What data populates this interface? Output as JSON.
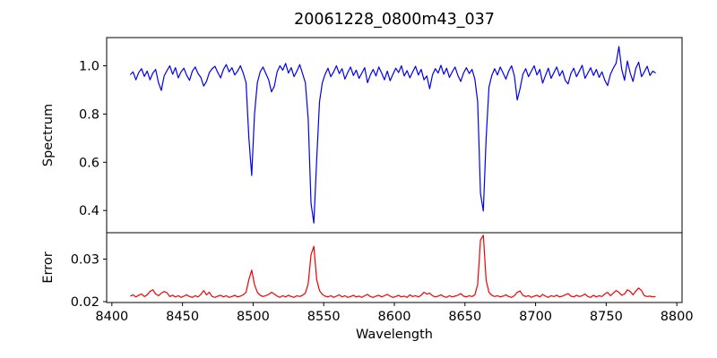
{
  "chart_data": {
    "type": "line",
    "title": "20061228_0800m43_037",
    "xlabel": "Wavelength",
    "grid": false,
    "legend": null,
    "xlim": [
      8396.3,
      8803.7
    ],
    "xticks": [
      "8400",
      "8450",
      "8500",
      "8550",
      "8600",
      "8650",
      "8700",
      "8750",
      "8800"
    ],
    "x_start": 8413,
    "x_step": 2,
    "panels": [
      {
        "name": "spectrum",
        "ylabel": "Spectrum",
        "color": "#0000f0",
        "ylim": [
          0.308,
          1.117
        ],
        "yticks": [
          "0.4",
          "0.6",
          "0.8",
          "1.0"
        ],
        "values": [
          0.963,
          0.975,
          0.942,
          0.972,
          0.988,
          0.956,
          0.978,
          0.942,
          0.97,
          0.985,
          0.93,
          0.898,
          0.958,
          0.98,
          1.0,
          0.965,
          0.992,
          0.95,
          0.975,
          0.99,
          0.96,
          0.94,
          0.978,
          0.995,
          0.968,
          0.952,
          0.916,
          0.935,
          0.972,
          0.988,
          0.998,
          0.972,
          0.95,
          0.985,
          1.005,
          0.975,
          0.992,
          0.962,
          0.978,
          1.0,
          0.97,
          0.93,
          0.7,
          0.545,
          0.8,
          0.93,
          0.975,
          0.995,
          0.968,
          0.942,
          0.892,
          0.915,
          0.975,
          1.0,
          0.982,
          1.01,
          0.97,
          0.992,
          0.955,
          0.978,
          1.005,
          0.968,
          0.93,
          0.78,
          0.43,
          0.348,
          0.61,
          0.85,
          0.93,
          0.965,
          0.99,
          0.955,
          0.975,
          1.0,
          0.968,
          0.988,
          0.945,
          0.972,
          0.995,
          0.96,
          0.982,
          0.948,
          0.97,
          0.992,
          0.93,
          0.962,
          0.985,
          0.958,
          0.995,
          0.97,
          0.942,
          0.978,
          0.938,
          0.965,
          0.99,
          0.972,
          1.0,
          0.958,
          0.98,
          0.95,
          0.975,
          0.998,
          0.962,
          0.985,
          0.942,
          0.958,
          0.905,
          0.962,
          0.988,
          0.97,
          1.002,
          0.965,
          0.99,
          0.952,
          0.975,
          0.995,
          0.96,
          0.935,
          0.97,
          0.992,
          0.968,
          0.985,
          0.945,
          0.85,
          0.47,
          0.398,
          0.7,
          0.912,
          0.96,
          0.988,
          0.962,
          0.995,
          0.97,
          0.945,
          0.978,
          1.0,
          0.958,
          0.858,
          0.905,
          0.965,
          0.988,
          0.955,
          0.978,
          1.0,
          0.962,
          0.985,
          0.928,
          0.96,
          0.99,
          0.948,
          0.972,
          0.995,
          0.958,
          0.98,
          0.94,
          0.925,
          0.968,
          0.99,
          0.955,
          0.978,
          1.002,
          0.948,
          0.97,
          0.992,
          0.96,
          0.985,
          0.952,
          0.975,
          0.94,
          0.918,
          0.965,
          0.99,
          1.01,
          1.08,
          0.985,
          0.94,
          1.02,
          0.97,
          0.935,
          0.99,
          1.015,
          0.955,
          0.975,
          0.998,
          0.96,
          0.978,
          0.97
        ]
      },
      {
        "name": "error",
        "ylabel": "Error",
        "color": "#f00000",
        "ylim": [
          0.0198,
          0.0362
        ],
        "yticks": [
          "0.02",
          "0.03"
        ],
        "values": [
          0.0213,
          0.0216,
          0.0211,
          0.0215,
          0.0218,
          0.0212,
          0.0216,
          0.0224,
          0.0228,
          0.0218,
          0.0214,
          0.022,
          0.0224,
          0.0221,
          0.0212,
          0.0215,
          0.0211,
          0.0214,
          0.021,
          0.0213,
          0.0216,
          0.0212,
          0.021,
          0.0214,
          0.0211,
          0.0217,
          0.0226,
          0.0216,
          0.0222,
          0.0212,
          0.021,
          0.0213,
          0.0215,
          0.0211,
          0.0214,
          0.021,
          0.0212,
          0.0215,
          0.0211,
          0.0213,
          0.0216,
          0.0222,
          0.0252,
          0.0274,
          0.024,
          0.0222,
          0.0215,
          0.0212,
          0.0214,
          0.0217,
          0.0222,
          0.0218,
          0.0213,
          0.021,
          0.0214,
          0.0211,
          0.0215,
          0.0212,
          0.021,
          0.0214,
          0.0212,
          0.0215,
          0.022,
          0.0242,
          0.031,
          0.033,
          0.0252,
          0.0226,
          0.0217,
          0.0213,
          0.0211,
          0.0214,
          0.021,
          0.0213,
          0.0216,
          0.0211,
          0.0214,
          0.021,
          0.0212,
          0.0215,
          0.0211,
          0.0213,
          0.021,
          0.0214,
          0.0217,
          0.0212,
          0.021,
          0.0213,
          0.0215,
          0.0211,
          0.0214,
          0.0217,
          0.0213,
          0.021,
          0.0212,
          0.0215,
          0.0211,
          0.0213,
          0.021,
          0.0216,
          0.0212,
          0.0214,
          0.0211,
          0.0215,
          0.0222,
          0.0218,
          0.022,
          0.0214,
          0.0211,
          0.0213,
          0.0216,
          0.0212,
          0.021,
          0.0214,
          0.0211,
          0.0213,
          0.0215,
          0.0219,
          0.0213,
          0.0211,
          0.0214,
          0.0212,
          0.0216,
          0.024,
          0.0345,
          0.0356,
          0.025,
          0.0222,
          0.0215,
          0.0212,
          0.0214,
          0.0211,
          0.0213,
          0.0216,
          0.0212,
          0.021,
          0.0214,
          0.0222,
          0.0225,
          0.0215,
          0.0212,
          0.0214,
          0.021,
          0.0213,
          0.0215,
          0.0211,
          0.0217,
          0.0213,
          0.021,
          0.0214,
          0.0212,
          0.0215,
          0.0211,
          0.0213,
          0.0216,
          0.0219,
          0.0213,
          0.0211,
          0.0215,
          0.0212,
          0.0214,
          0.0218,
          0.0212,
          0.021,
          0.0215,
          0.0211,
          0.0214,
          0.0212,
          0.0218,
          0.0222,
          0.0214,
          0.022,
          0.0226,
          0.0222,
          0.0215,
          0.0218,
          0.0228,
          0.0224,
          0.0216,
          0.0225,
          0.0232,
          0.0226,
          0.0214,
          0.0212,
          0.0213,
          0.0211,
          0.0212
        ]
      }
    ]
  }
}
